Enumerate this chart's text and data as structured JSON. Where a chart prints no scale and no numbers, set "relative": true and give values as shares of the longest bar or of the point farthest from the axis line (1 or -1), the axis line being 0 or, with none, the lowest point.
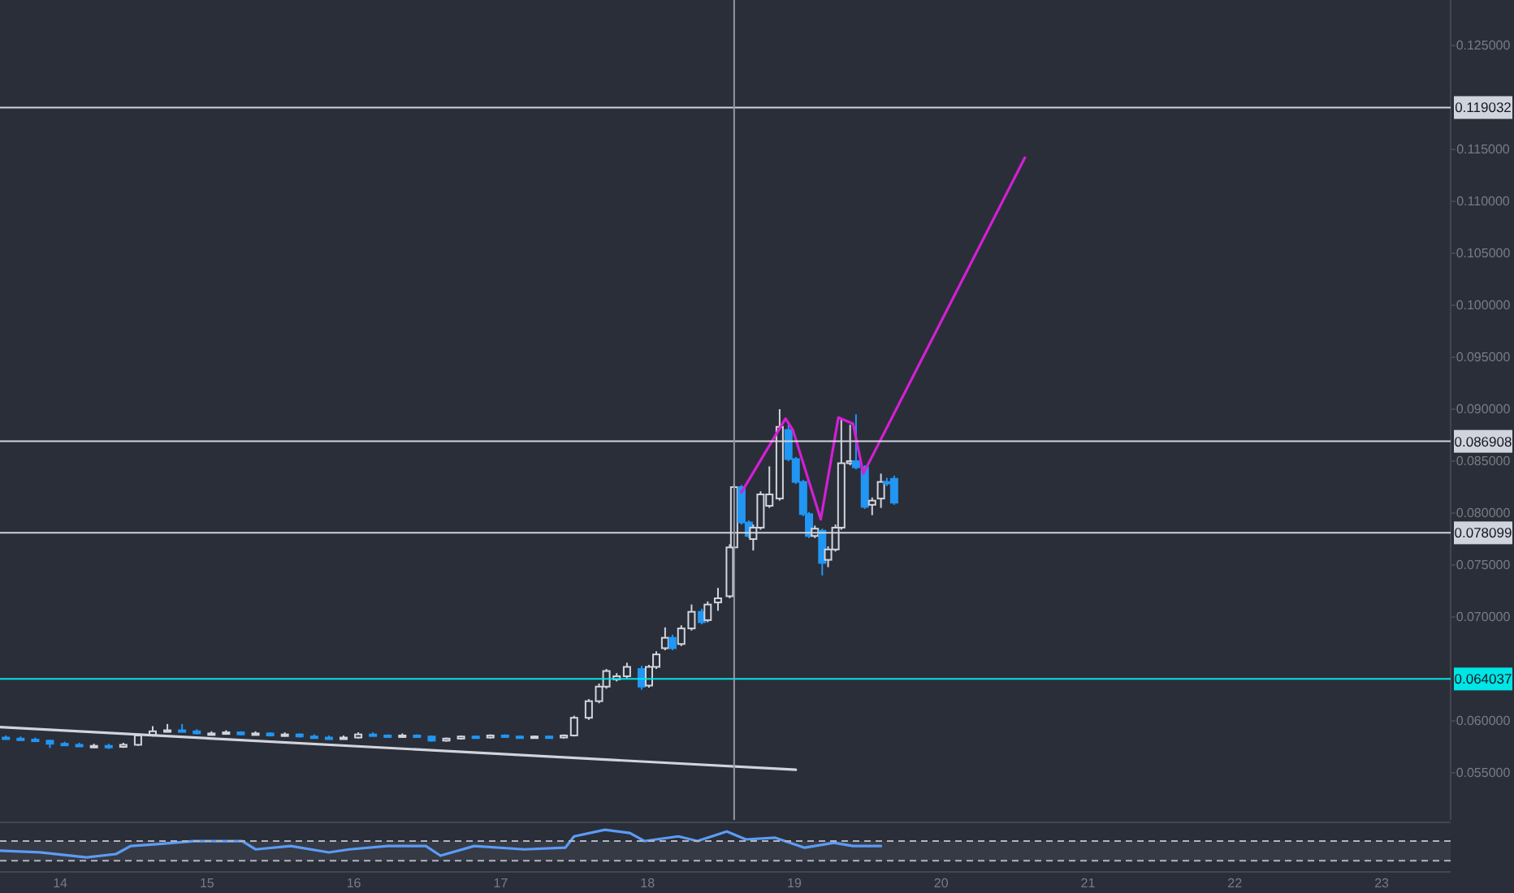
{
  "chart_data": [
    {
      "type": "candlestick",
      "tick_labels": "y",
      "xlim": [
        13.59,
        23.47
      ],
      "ylim": [
        0.05047,
        0.12938
      ],
      "yticks": [
        {
          "value": 0.055,
          "label": "0.055000"
        },
        {
          "value": 0.06,
          "label": "0.060000"
        },
        {
          "value": 0.07,
          "label": "0.070000"
        },
        {
          "value": 0.075,
          "label": "0.075000"
        },
        {
          "value": 0.08,
          "label": "0.080000"
        },
        {
          "value": 0.085,
          "label": "0.085000"
        },
        {
          "value": 0.09,
          "label": "0.090000"
        },
        {
          "value": 0.095,
          "label": "0.095000"
        },
        {
          "value": 0.1,
          "label": "0.100000"
        },
        {
          "value": 0.105,
          "label": "0.105000"
        },
        {
          "value": 0.11,
          "label": "0.110000"
        },
        {
          "value": 0.115,
          "label": "0.115000"
        },
        {
          "value": 0.125,
          "label": "0.125000"
        }
      ],
      "x": [
        13.63,
        13.73,
        13.83,
        13.93,
        14.03,
        14.13,
        14.23,
        14.33,
        14.43,
        14.53,
        14.63,
        14.73,
        14.83,
        14.93,
        15.03,
        15.13,
        15.23,
        15.33,
        15.43,
        15.53,
        15.63,
        15.73,
        15.83,
        15.93,
        16.03,
        16.13,
        16.23,
        16.33,
        16.43,
        16.53,
        16.63,
        16.73,
        16.83,
        16.93,
        17.03,
        17.13,
        17.23,
        17.33,
        17.43,
        17.5,
        17.6,
        17.67,
        17.72,
        17.79,
        17.86,
        17.96,
        18.01,
        18.06,
        18.12,
        18.17,
        18.23,
        18.3,
        18.37,
        18.41,
        18.48,
        18.56,
        18.59,
        18.64,
        18.69,
        18.72,
        18.77,
        18.83,
        18.9,
        18.96,
        19.01,
        19.06,
        19.1,
        19.14,
        19.19,
        19.23,
        19.28,
        19.32,
        19.38,
        19.42,
        19.48,
        19.53,
        19.59,
        19.63,
        19.68
      ],
      "ohlc": [
        [
          0.0584,
          0.0586,
          0.0582,
          0.0583
        ],
        [
          0.0583,
          0.0585,
          0.0581,
          0.0582
        ],
        [
          0.0582,
          0.0584,
          0.058,
          0.0581
        ],
        [
          0.0581,
          0.0582,
          0.0574,
          0.0578
        ],
        [
          0.0578,
          0.058,
          0.0576,
          0.0577
        ],
        [
          0.0577,
          0.0579,
          0.0575,
          0.0576
        ],
        [
          0.0576,
          0.0578,
          0.0574,
          0.0576
        ],
        [
          0.0576,
          0.0578,
          0.0573,
          0.0575
        ],
        [
          0.0575,
          0.0579,
          0.0574,
          0.0577
        ],
        [
          0.0577,
          0.0588,
          0.0576,
          0.0586
        ],
        [
          0.0586,
          0.0595,
          0.0585,
          0.059
        ],
        [
          0.059,
          0.0597,
          0.0589,
          0.0591
        ],
        [
          0.0591,
          0.0597,
          0.0589,
          0.059
        ],
        [
          0.059,
          0.0592,
          0.0587,
          0.0588
        ],
        [
          0.0588,
          0.059,
          0.0586,
          0.0588
        ],
        [
          0.0588,
          0.0591,
          0.0587,
          0.0589
        ],
        [
          0.0589,
          0.059,
          0.0586,
          0.0587
        ],
        [
          0.0587,
          0.059,
          0.0586,
          0.0588
        ],
        [
          0.0588,
          0.0589,
          0.0585,
          0.0586
        ],
        [
          0.0586,
          0.0589,
          0.0585,
          0.0587
        ],
        [
          0.0587,
          0.0588,
          0.0584,
          0.0585
        ],
        [
          0.0585,
          0.0587,
          0.0583,
          0.0584
        ],
        [
          0.0584,
          0.0586,
          0.0582,
          0.0583
        ],
        [
          0.0583,
          0.0586,
          0.0582,
          0.0584
        ],
        [
          0.0584,
          0.0589,
          0.0583,
          0.0587
        ],
        [
          0.0587,
          0.0589,
          0.0585,
          0.0586
        ],
        [
          0.0586,
          0.0587,
          0.0584,
          0.0585
        ],
        [
          0.0585,
          0.0588,
          0.0584,
          0.0586
        ],
        [
          0.0586,
          0.0587,
          0.0584,
          0.0585
        ],
        [
          0.0585,
          0.0586,
          0.058,
          0.0581
        ],
        [
          0.0581,
          0.0584,
          0.058,
          0.0583
        ],
        [
          0.0583,
          0.0586,
          0.0582,
          0.0585
        ],
        [
          0.0585,
          0.0586,
          0.0583,
          0.0584
        ],
        [
          0.0584,
          0.0587,
          0.0583,
          0.0586
        ],
        [
          0.0586,
          0.0587,
          0.0584,
          0.0585
        ],
        [
          0.0585,
          0.0586,
          0.0583,
          0.0584
        ],
        [
          0.0584,
          0.0586,
          0.0583,
          0.0585
        ],
        [
          0.0585,
          0.0586,
          0.0583,
          0.0584
        ],
        [
          0.0584,
          0.0587,
          0.0583,
          0.0586
        ],
        [
          0.0586,
          0.0605,
          0.0585,
          0.0603
        ],
        [
          0.0603,
          0.0621,
          0.0601,
          0.0619
        ],
        [
          0.0619,
          0.0636,
          0.0617,
          0.0633
        ],
        [
          0.0633,
          0.065,
          0.0631,
          0.0648
        ],
        [
          0.064,
          0.0646,
          0.0638,
          0.0643
        ],
        [
          0.0643,
          0.0656,
          0.0641,
          0.0652
        ],
        [
          0.065,
          0.0653,
          0.063,
          0.0633
        ],
        [
          0.0634,
          0.0654,
          0.0632,
          0.0652
        ],
        [
          0.0652,
          0.0667,
          0.065,
          0.0664
        ],
        [
          0.067,
          0.069,
          0.0668,
          0.068
        ],
        [
          0.068,
          0.0683,
          0.0668,
          0.067
        ],
        [
          0.0674,
          0.0692,
          0.0672,
          0.0689
        ],
        [
          0.0689,
          0.0712,
          0.0687,
          0.0705
        ],
        [
          0.0705,
          0.0708,
          0.0693,
          0.0695
        ],
        [
          0.0697,
          0.0715,
          0.0695,
          0.0712
        ],
        [
          0.0714,
          0.0728,
          0.0706,
          0.0718
        ],
        [
          0.072,
          0.077,
          0.0718,
          0.0767
        ],
        [
          0.0767,
          0.0828,
          0.0765,
          0.0825
        ],
        [
          0.0825,
          0.0827,
          0.0789,
          0.0791
        ],
        [
          0.0791,
          0.0793,
          0.0776,
          0.0778
        ],
        [
          0.0775,
          0.0789,
          0.0764,
          0.0786
        ],
        [
          0.0786,
          0.0821,
          0.0784,
          0.0818
        ],
        [
          0.0807,
          0.0845,
          0.0805,
          0.0818
        ],
        [
          0.0814,
          0.09,
          0.0812,
          0.0883
        ],
        [
          0.088,
          0.0885,
          0.085,
          0.0852
        ],
        [
          0.0852,
          0.0854,
          0.0828,
          0.083
        ],
        [
          0.083,
          0.0832,
          0.0797,
          0.0799
        ],
        [
          0.0799,
          0.0801,
          0.0776,
          0.0778
        ],
        [
          0.0778,
          0.0788,
          0.0776,
          0.0785
        ],
        [
          0.0783,
          0.0785,
          0.074,
          0.0752
        ],
        [
          0.0755,
          0.0768,
          0.0748,
          0.0765
        ],
        [
          0.0765,
          0.0789,
          0.0763,
          0.0786
        ],
        [
          0.0786,
          0.089,
          0.0784,
          0.0848
        ],
        [
          0.0848,
          0.0885,
          0.0846,
          0.085
        ],
        [
          0.085,
          0.0895,
          0.0842,
          0.0844
        ],
        [
          0.0844,
          0.0846,
          0.0804,
          0.0806
        ],
        [
          0.0808,
          0.0815,
          0.0798,
          0.0812
        ],
        [
          0.0814,
          0.0838,
          0.0805,
          0.083
        ],
        [
          0.083,
          0.0834,
          0.0826,
          0.0829
        ],
        [
          0.0833,
          0.0836,
          0.0808,
          0.081
        ]
      ],
      "series": [
        {
          "type": "line",
          "color": "#d1d4dc",
          "x": [
            13.59,
            19.01
          ],
          "values": [
            0.0594,
            0.0553
          ]
        },
        {
          "type": "line",
          "color": "#d41fd4",
          "x": [
            18.64,
            18.94,
            18.99,
            19.18,
            19.3,
            19.4,
            19.47,
            20.57
          ],
          "values": [
            0.082,
            0.0891,
            0.088,
            0.0794,
            0.0892,
            0.0886,
            0.0838,
            0.1142
          ]
        }
      ],
      "ref_lines": [
        {
          "axis": "y",
          "value": 0.119032,
          "label": "0.119032",
          "color": "#d1d4dc"
        },
        {
          "axis": "y",
          "value": 0.086908,
          "label": "0.086908",
          "color": "#d1d4dc"
        },
        {
          "axis": "y",
          "value": 0.078099,
          "label": "0.078099",
          "color": "#d1d4dc"
        },
        {
          "axis": "y",
          "value": 0.064037,
          "label": "0.064037",
          "color": "#00e5e5"
        },
        {
          "axis": "x",
          "value": 18.59,
          "label": null,
          "color": "#9598a1"
        }
      ]
    },
    {
      "type": "line",
      "relative": true,
      "tick_labels": "x",
      "xlim": [
        13.59,
        23.47
      ],
      "xticks": [
        14,
        15,
        16,
        17,
        18,
        19,
        20,
        21,
        22,
        23
      ],
      "series": [
        {
          "color": "#5b9cf6",
          "x": [
            13.59,
            13.86,
            14.18,
            14.38,
            14.48,
            14.64,
            14.91,
            15.24,
            15.33,
            15.57,
            15.83,
            15.97,
            16.23,
            16.49,
            16.59,
            16.82,
            17.16,
            17.44,
            17.5,
            17.71,
            17.88,
            17.98,
            18.21,
            18.34,
            18.54,
            18.67,
            18.87,
            19.07,
            19.27,
            19.4,
            19.59
          ],
          "values": [
            0.24,
            0.18,
            0,
            0.12,
            0.41,
            0.47,
            0.59,
            0.59,
            0.29,
            0.41,
            0.18,
            0.29,
            0.41,
            0.41,
            0.06,
            0.41,
            0.29,
            0.35,
            0.76,
            1,
            0.88,
            0.59,
            0.76,
            0.59,
            0.94,
            0.65,
            0.71,
            0.35,
            0.53,
            0.41,
            0.41
          ]
        }
      ],
      "bands": [
        {
          "axis": "y",
          "from": -0.12,
          "to": 0.59,
          "color": "#363a45"
        }
      ],
      "ref_lines": [
        {
          "axis": "y",
          "value": 0.59,
          "label": null,
          "color": "#b2b5be",
          "line_style": "dashed"
        },
        {
          "axis": "y",
          "value": -0.12,
          "label": null,
          "color": "#b2b5be",
          "line_style": "dashed"
        }
      ]
    }
  ]
}
